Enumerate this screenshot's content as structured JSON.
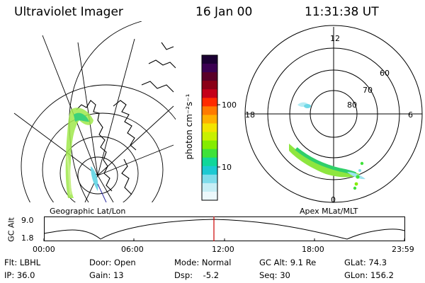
{
  "header": {
    "title": "Ultraviolet Imager",
    "date": "16 Jan 00",
    "time": "11:31:38 UT"
  },
  "geo_panel": {
    "label": "Geographic Lat/Lon"
  },
  "colorbar": {
    "unit_label": "photon cm⁻²s⁻¹",
    "ticks": [
      "100",
      "10"
    ],
    "colors": [
      "#1b0033",
      "#3b0052",
      "#5a0028",
      "#8a0017",
      "#c4001a",
      "#ff2a00",
      "#ff7a00",
      "#ffb000",
      "#f3e400",
      "#c8f000",
      "#84ec00",
      "#3ee23a",
      "#10d79a",
      "#1cc9d2",
      "#7fdcea",
      "#c6eef5",
      "#ecf8fb"
    ]
  },
  "polar_panel": {
    "label": "Apex MLat/MLT",
    "mlt_labels": [
      "12",
      "18",
      "6",
      "0"
    ],
    "lat_labels": [
      "60",
      "70",
      "80"
    ]
  },
  "altitude_plot": {
    "ylabel": "GC Alt",
    "y_ticks": [
      "9.0",
      "1.8"
    ],
    "x_ticks": [
      "00:00",
      "06:00",
      "12:00",
      "18:00",
      "23:59"
    ],
    "current_time_marker_color": "#cc0000"
  },
  "footer": {
    "filter": "Flt: LBHL",
    "ip": "IP: 36.0",
    "door": "Door: Open",
    "gain": "Gain: 13",
    "mode": "Mode: Normal",
    "dsp": "Dsp:    -5.2",
    "gc_alt": "GC Alt: 9.1 Re",
    "seq": "Seq: 30",
    "glat": "GLat: 74.3",
    "glon": "GLon: 156.2"
  }
}
